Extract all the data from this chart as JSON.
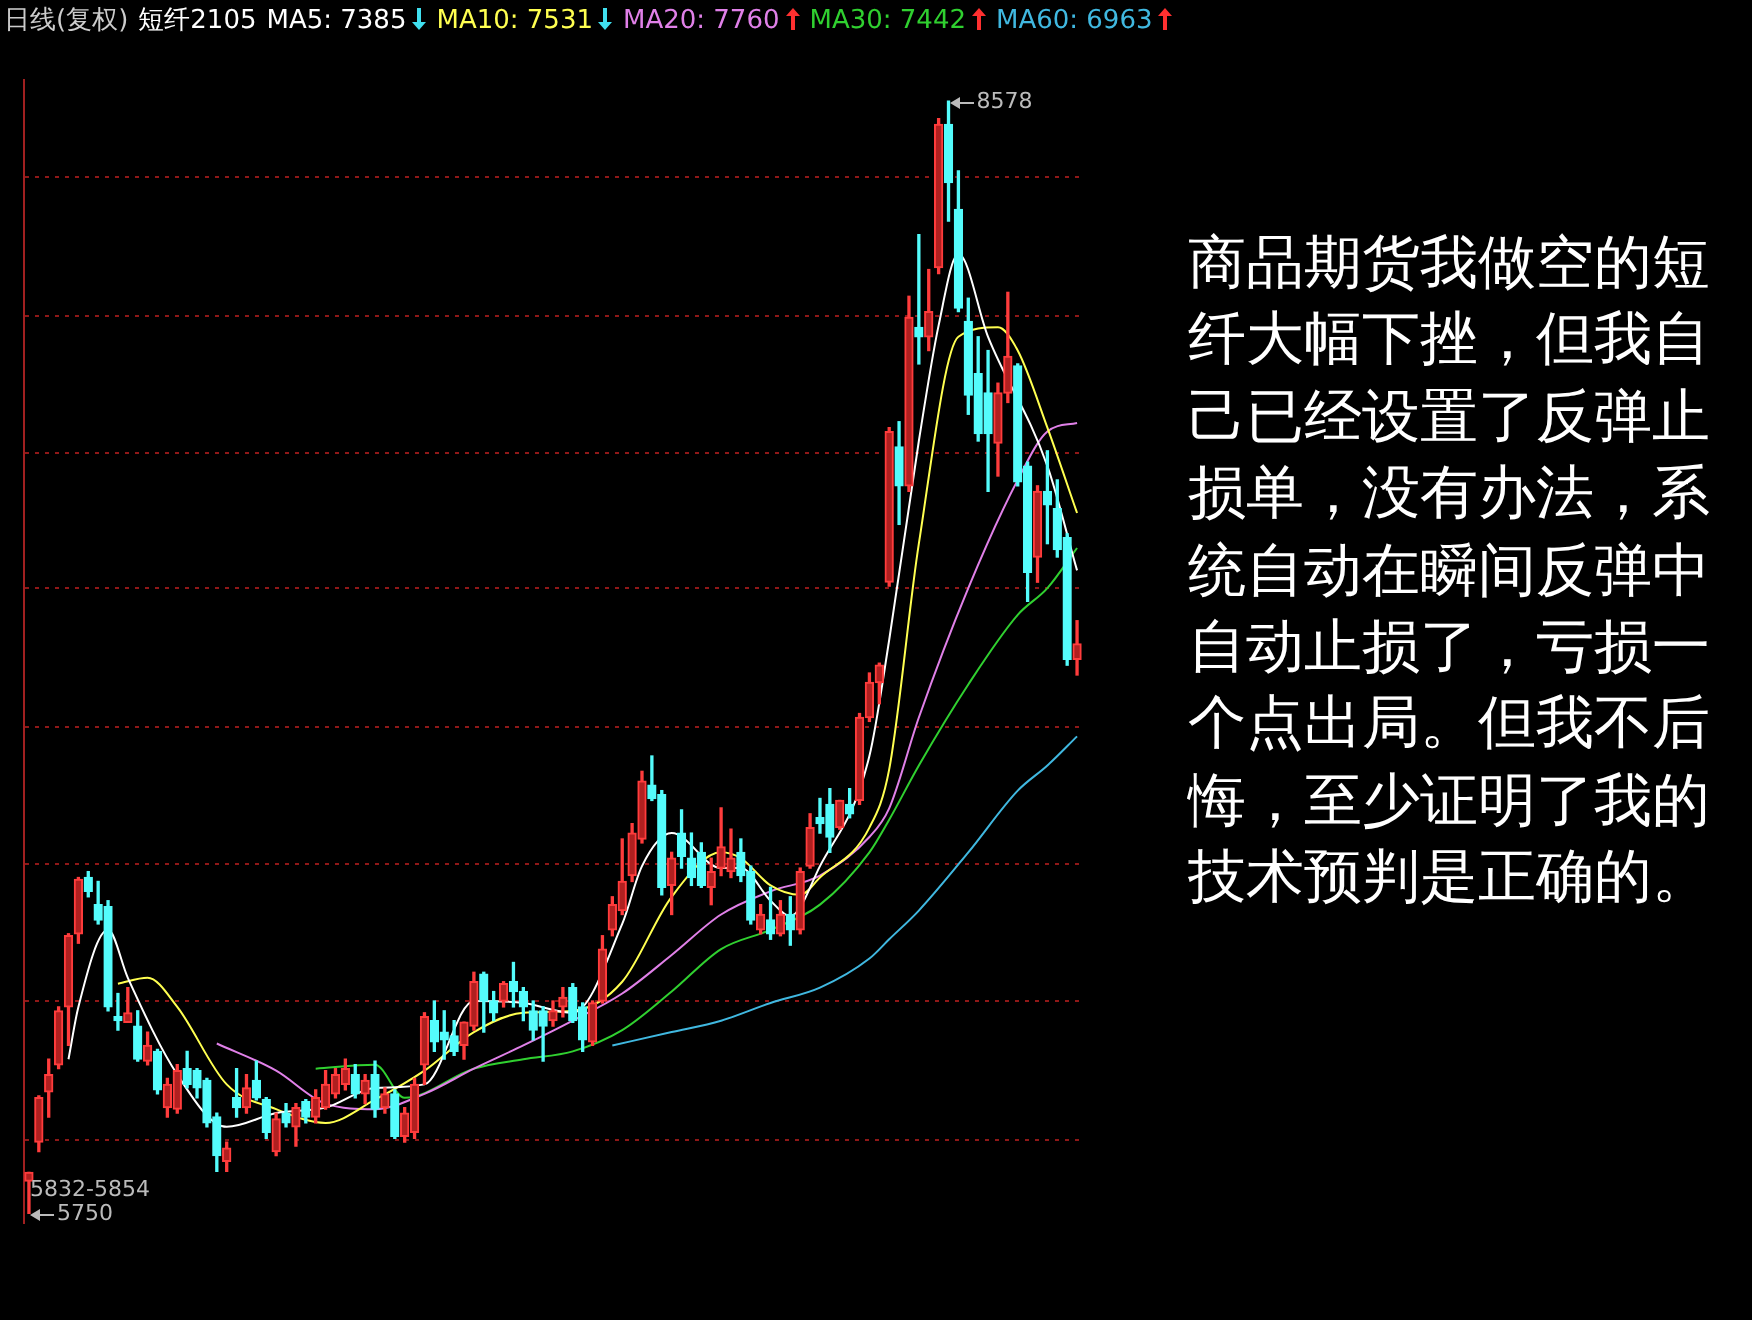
{
  "chart_data": {
    "type": "candlestick",
    "title": "日线(复权)",
    "subtitle": "短纤2105",
    "categories": [
      null,
      null,
      null,
      null,
      null,
      null,
      null,
      null,
      null,
      null,
      null,
      null,
      null,
      null,
      null,
      null,
      null,
      null,
      null,
      null,
      null,
      null,
      null,
      null,
      null,
      null,
      null,
      null,
      null,
      null,
      null,
      null,
      null,
      null,
      null,
      null,
      null,
      null,
      null,
      null,
      null,
      null,
      null,
      null,
      null,
      null,
      null,
      null,
      null,
      null,
      null,
      null,
      null,
      null,
      null,
      null,
      null,
      null,
      null,
      null,
      null,
      null,
      null,
      null,
      null,
      null,
      null,
      null,
      null,
      null,
      null,
      null,
      null,
      null,
      null,
      null,
      null,
      null,
      null,
      null,
      null,
      null,
      null,
      null,
      null,
      null,
      null,
      null,
      null,
      null,
      null,
      null,
      null,
      null,
      null,
      null,
      null,
      null,
      null,
      null,
      null,
      null,
      null,
      null,
      null,
      null,
      null
    ],
    "ohlc": [
      [
        5832,
        5854,
        5750,
        5854
      ],
      [
        5931,
        6049,
        5907,
        6044
      ],
      [
        6059,
        6142,
        5995,
        6103
      ],
      [
        6128,
        6275,
        6118,
        6265
      ],
      [
        6275,
        6461,
        6177,
        6456
      ],
      [
        6461,
        6604,
        6437,
        6599
      ],
      [
        6604,
        6619,
        6555,
        6569
      ],
      [
        6535,
        6594,
        6486,
        6496
      ],
      [
        6530,
        6545,
        6265,
        6275
      ],
      [
        6250,
        6309,
        6216,
        6240
      ],
      [
        6236,
        6324,
        6236,
        6260
      ],
      [
        6226,
        6265,
        6137,
        6142
      ],
      [
        6137,
        6211,
        6128,
        6177
      ],
      [
        6162,
        6167,
        6054,
        6064
      ],
      [
        6019,
        6093,
        5995,
        6078
      ],
      [
        6015,
        6128,
        6005,
        6113
      ],
      [
        6118,
        6162,
        6069,
        6078
      ],
      [
        6113,
        6118,
        6044,
        6069
      ],
      [
        6088,
        6093,
        5970,
        5980
      ],
      [
        5995,
        6005,
        5857,
        5897
      ],
      [
        5882,
        5931,
        5857,
        5916
      ],
      [
        6044,
        6118,
        5995,
        6019
      ],
      [
        6019,
        6103,
        6005,
        6069
      ],
      [
        6088,
        6137,
        6039,
        6044
      ],
      [
        6039,
        6044,
        5941,
        5956
      ],
      [
        5907,
        6005,
        5897,
        5990
      ],
      [
        6005,
        6029,
        5970,
        5980
      ],
      [
        5970,
        6029,
        5921,
        6019
      ],
      [
        6034,
        6039,
        5980,
        5995
      ],
      [
        5995,
        6064,
        5980,
        6044
      ],
      [
        6019,
        6113,
        6015,
        6078
      ],
      [
        6054,
        6118,
        6044,
        6103
      ],
      [
        6078,
        6142,
        6064,
        6118
      ],
      [
        6103,
        6128,
        6044,
        6054
      ],
      [
        6054,
        6103,
        6029,
        6088
      ],
      [
        6103,
        6137,
        5995,
        6015
      ],
      [
        6019,
        6069,
        6005,
        6054
      ],
      [
        6054,
        6064,
        5941,
        5946
      ],
      [
        5946,
        6019,
        5931,
        6005
      ],
      [
        5956,
        6093,
        5941,
        6078
      ],
      [
        6128,
        6260,
        6078,
        6250
      ],
      [
        6240,
        6290,
        6162,
        6186
      ],
      [
        6211,
        6265,
        6142,
        6191
      ],
      [
        6201,
        6240,
        6152,
        6162
      ],
      [
        6177,
        6236,
        6142,
        6236
      ],
      [
        6226,
        6363,
        6216,
        6339
      ],
      [
        6358,
        6363,
        6211,
        6290
      ],
      [
        6290,
        6314,
        6240,
        6260
      ],
      [
        6290,
        6339,
        6275,
        6334
      ],
      [
        6339,
        6388,
        6275,
        6314
      ],
      [
        6314,
        6324,
        6240,
        6275
      ],
      [
        6265,
        6290,
        6191,
        6216
      ],
      [
        6265,
        6275,
        6137,
        6226
      ],
      [
        6240,
        6290,
        6226,
        6265
      ],
      [
        6275,
        6324,
        6250,
        6299
      ],
      [
        6324,
        6334,
        6236,
        6240
      ],
      [
        6275,
        6285,
        6162,
        6191
      ],
      [
        6186,
        6290,
        6177,
        6285
      ],
      [
        6290,
        6456,
        6285,
        6422
      ],
      [
        6471,
        6555,
        6456,
        6535
      ],
      [
        6520,
        6702,
        6510,
        6594
      ],
      [
        6609,
        6741,
        6594,
        6717
      ],
      [
        6702,
        6874,
        6692,
        6849
      ],
      [
        6839,
        6913,
        6800,
        6805
      ],
      [
        6815,
        6825,
        6560,
        6579
      ],
      [
        6584,
        6668,
        6510,
        6653
      ],
      [
        6717,
        6776,
        6628,
        6658
      ],
      [
        6653,
        6717,
        6584,
        6604
      ],
      [
        6668,
        6692,
        6579,
        6584
      ],
      [
        6579,
        6653,
        6535,
        6619
      ],
      [
        6628,
        6781,
        6609,
        6682
      ],
      [
        6619,
        6727,
        6604,
        6653
      ],
      [
        6668,
        6702,
        6594,
        6609
      ],
      [
        6619,
        6633,
        6486,
        6496
      ],
      [
        6471,
        6535,
        6461,
        6510
      ],
      [
        6496,
        6579,
        6447,
        6461
      ],
      [
        6461,
        6545,
        6456,
        6510
      ],
      [
        6510,
        6555,
        6432,
        6471
      ],
      [
        6471,
        6628,
        6461,
        6619
      ],
      [
        6633,
        6766,
        6628,
        6731
      ],
      [
        6756,
        6805,
        6717,
        6741
      ],
      [
        6790,
        6830,
        6668,
        6707
      ],
      [
        6731,
        6800,
        6727,
        6800
      ],
      [
        6790,
        6830,
        6756,
        6766
      ],
      [
        6800,
        7021,
        6790,
        7011
      ],
      [
        7011,
        7124,
        7001,
        7100
      ],
      [
        7100,
        7149,
        7046,
        7144
      ],
      [
        7355,
        7748,
        7345,
        7738
      ],
      [
        7699,
        7763,
        7502,
        7600
      ],
      [
        7600,
        8082,
        7586,
        8028
      ],
      [
        8003,
        8239,
        7910,
        7979
      ],
      [
        7979,
        8150,
        7944,
        8043
      ],
      [
        8155,
        8534,
        8140,
        8519
      ],
      [
        8519,
        8578,
        8273,
        8371
      ],
      [
        8303,
        8401,
        8043,
        8052
      ],
      [
        8018,
        8077,
        7782,
        7831
      ],
      [
        7885,
        7979,
        7714,
        7733
      ],
      [
        7836,
        7944,
        7586,
        7733
      ],
      [
        7709,
        7861,
        7625,
        7836
      ],
      [
        7836,
        8092,
        7812,
        7929
      ],
      [
        7905,
        7910,
        7600,
        7610
      ],
      [
        7650,
        7660,
        7306,
        7380
      ],
      [
        7419,
        7600,
        7355,
        7586
      ],
      [
        7586,
        7689,
        7453,
        7552
      ],
      [
        7542,
        7615,
        7419,
        7438
      ],
      [
        7468,
        7478,
        7144,
        7159
      ],
      [
        7159,
        7257,
        7119,
        7198
      ]
    ],
    "series": [
      {
        "name": "MA5: 7385",
        "type": "line",
        "color": "#ffffff",
        "values": [
          null,
          null,
          null,
          null,
          6142,
          6275,
          null,
          null,
          6471,
          null,
          6349,
          null,
          null,
          null,
          null,
          6103,
          null,
          null,
          null,
          null,
          5970,
          null,
          null,
          null,
          null,
          6005,
          null,
          null,
          null,
          null,
          6019,
          null,
          null,
          null,
          null,
          6069,
          null,
          null,
          null,
          null,
          6078,
          null,
          null,
          null,
          null,
          6290,
          null,
          null,
          null,
          null,
          6285,
          null,
          null,
          null,
          null,
          6260,
          null,
          null,
          null,
          null,
          6486,
          null,
          6633,
          null,
          null,
          6717,
          null,
          null,
          null,
          null,
          6628,
          null,
          6628,
          null,
          null,
          6545,
          null,
          6506,
          null,
          null,
          6633,
          null,
          null,
          null,
          null,
          6913,
          null,
          7208,
          null,
          null,
          7714,
          null,
          8008,
          null,
          8190,
          null,
          null,
          7979,
          null,
          null,
          null,
          null,
          null,
          7650,
          null,
          null,
          7385
        ]
      },
      {
        "name": "MA10: 7531",
        "type": "line",
        "color": "#ffff50",
        "values": [
          null,
          null,
          null,
          null,
          null,
          null,
          null,
          null,
          null,
          6334,
          null,
          null,
          6349,
          null,
          null,
          6275,
          null,
          null,
          null,
          null,
          6078,
          null,
          null,
          null,
          null,
          6015,
          null,
          null,
          null,
          null,
          5980,
          null,
          null,
          null,
          null,
          6039,
          null,
          null,
          null,
          null,
          6113,
          null,
          null,
          null,
          null,
          6211,
          null,
          null,
          null,
          null,
          6260,
          null,
          null,
          null,
          null,
          6265,
          null,
          null,
          null,
          null,
          6339,
          null,
          null,
          null,
          null,
          6555,
          null,
          null,
          null,
          null,
          6668,
          null,
          6653,
          null,
          null,
          6584,
          null,
          null,
          6560,
          null,
          6604,
          null,
          null,
          null,
          null,
          6731,
          null,
          6879,
          null,
          null,
          7453,
          null,
          null,
          null,
          7979,
          null,
          null,
          null,
          8003,
          null,
          7944,
          null,
          null,
          7748,
          null,
          null,
          7531
        ]
      },
      {
        "name": "MA20: 7760",
        "type": "line",
        "color": "#e080e8",
        "values": [
          null,
          null,
          null,
          null,
          null,
          null,
          null,
          null,
          null,
          null,
          null,
          null,
          null,
          null,
          null,
          null,
          null,
          null,
          null,
          6182,
          null,
          null,
          null,
          null,
          null,
          6113,
          null,
          null,
          null,
          null,
          6029,
          null,
          null,
          null,
          null,
          6015,
          null,
          null,
          null,
          null,
          6054,
          null,
          null,
          null,
          null,
          6118,
          null,
          null,
          null,
          null,
          6177,
          null,
          null,
          null,
          null,
          6240,
          null,
          null,
          null,
          null,
          6309,
          null,
          null,
          null,
          null,
          6407,
          null,
          null,
          null,
          null,
          6510,
          null,
          null,
          null,
          null,
          6569,
          null,
          null,
          null,
          null,
          6609,
          null,
          null,
          null,
          null,
          6707,
          null,
          6780,
          null,
          null,
          7011,
          null,
          null,
          null,
          null,
          7340,
          null,
          null,
          null,
          null,
          7615,
          null,
          null,
          7738,
          null,
          null,
          7760
        ]
      },
      {
        "name": "MA30: 7442",
        "type": "line",
        "color": "#30d030",
        "values": [
          null,
          null,
          null,
          null,
          null,
          null,
          null,
          null,
          null,
          null,
          null,
          null,
          null,
          null,
          null,
          null,
          null,
          null,
          null,
          null,
          null,
          null,
          null,
          null,
          null,
          null,
          null,
          null,
          null,
          6118,
          null,
          null,
          null,
          null,
          null,
          6128,
          null,
          null,
          6044,
          null,
          null,
          null,
          null,
          null,
          null,
          6118,
          null,
          null,
          null,
          null,
          6142,
          null,
          null,
          null,
          null,
          6162,
          null,
          null,
          null,
          null,
          6216,
          null,
          null,
          null,
          null,
          6314,
          null,
          null,
          null,
          null,
          6422,
          null,
          null,
          null,
          null,
          6471,
          null,
          null,
          null,
          null,
          6535,
          null,
          null,
          null,
          null,
          6668,
          null,
          6751,
          null,
          null,
          6889,
          null,
          null,
          null,
          null,
          7095,
          null,
          null,
          null,
          null,
          7272,
          null,
          null,
          7340,
          null,
          null,
          7442
        ]
      },
      {
        "name": "MA60: 6963",
        "type": "line",
        "color": "#40b8e0",
        "values": [
          null,
          null,
          null,
          null,
          null,
          null,
          null,
          null,
          null,
          null,
          null,
          null,
          null,
          null,
          null,
          null,
          null,
          null,
          null,
          null,
          null,
          null,
          null,
          null,
          null,
          null,
          null,
          null,
          null,
          null,
          null,
          null,
          null,
          null,
          null,
          null,
          null,
          null,
          null,
          null,
          null,
          null,
          null,
          null,
          null,
          null,
          null,
          null,
          null,
          null,
          null,
          null,
          null,
          null,
          null,
          null,
          null,
          null,
          null,
          6177,
          null,
          null,
          null,
          null,
          null,
          6211,
          null,
          null,
          null,
          null,
          6240,
          null,
          null,
          null,
          null,
          6285,
          null,
          null,
          null,
          null,
          6324,
          null,
          null,
          null,
          null,
          6398,
          null,
          6447,
          null,
          null,
          6520,
          null,
          null,
          null,
          null,
          6668,
          null,
          null,
          null,
          null,
          6825,
          null,
          null,
          6889,
          null,
          null,
          6963
        ]
      }
    ],
    "ylim": [
      5725,
      8632
    ],
    "yticks": [
      {
        "value": 5936,
        "label": null
      },
      {
        "value": 6290,
        "label": null
      },
      {
        "value": 6638,
        "label": null
      },
      {
        "value": 6987,
        "label": null
      },
      {
        "value": 7340,
        "label": null
      },
      {
        "value": 7684,
        "label": null
      },
      {
        "value": 8033,
        "label": null
      },
      {
        "value": 8386,
        "label": null
      }
    ],
    "grid": "y",
    "marker": "none",
    "annotations": [
      "8578",
      "5750",
      "5832-5854",
      "商品期货我做空的短纤大幅下挫，但我自己已经设置了反弹止损单，没有办法，系统自动在瞬间反弹中自动止损了，亏损一个点出局。但我不后悔，至少证明了我的技术预判是正确的。"
    ]
  }
}
